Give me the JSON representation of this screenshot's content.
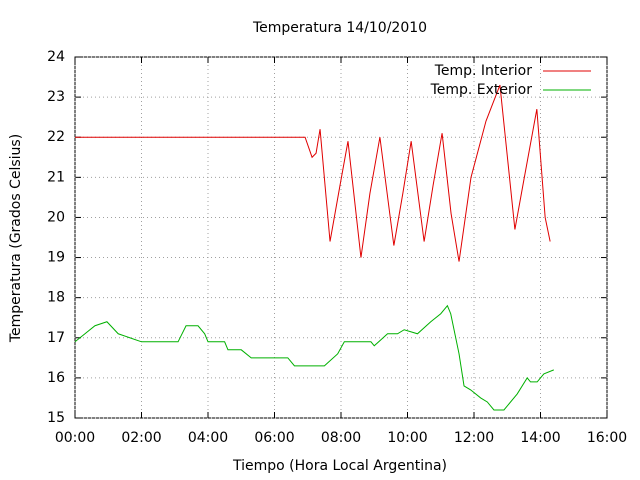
{
  "chart_data": {
    "type": "line",
    "title": "Temperatura 14/10/2010",
    "x_label": "Tiempo (Hora Local Argentina)",
    "y_label": "Temperatura (Grados Celsius)",
    "xlim": [
      0,
      16
    ],
    "ylim": [
      15,
      24
    ],
    "xticks": [
      {
        "value": 0,
        "label": "00:00"
      },
      {
        "value": 2,
        "label": "02:00"
      },
      {
        "value": 4,
        "label": "04:00"
      },
      {
        "value": 6,
        "label": "06:00"
      },
      {
        "value": 8,
        "label": "08:00"
      },
      {
        "value": 10,
        "label": "10:00"
      },
      {
        "value": 12,
        "label": "12:00"
      },
      {
        "value": 14,
        "label": "14:00"
      },
      {
        "value": 16,
        "label": "16:00"
      }
    ],
    "yticks": [
      15,
      16,
      17,
      18,
      19,
      20,
      21,
      22,
      23,
      24
    ],
    "grid": true,
    "legend": "top-right",
    "series": [
      {
        "name": "Temp. Interior",
        "color": "#e00000",
        "x": [
          0,
          6.92,
          7.13,
          7.25,
          7.37,
          7.67,
          7.97,
          8.21,
          8.6,
          8.87,
          9.17,
          9.59,
          9.86,
          10.11,
          10.5,
          10.77,
          11.04,
          11.31,
          11.55,
          11.91,
          12.36,
          12.78,
          13.23,
          13.47,
          13.89,
          14.14,
          14.29
        ],
        "values": [
          22,
          22,
          21.5,
          21.6,
          22.2,
          19.4,
          20.8,
          21.9,
          19.0,
          20.6,
          22.0,
          19.3,
          20.6,
          21.9,
          19.4,
          20.8,
          22.1,
          20.1,
          18.9,
          21.0,
          22.4,
          23.3,
          19.7,
          20.8,
          22.7,
          20.0,
          19.4
        ]
      },
      {
        "name": "Temp. Exterior",
        "color": "#00b000",
        "x": [
          0,
          0.3,
          0.6,
          0.96,
          1.3,
          2.0,
          3.1,
          3.34,
          3.7,
          3.9,
          4.0,
          4.5,
          4.6,
          5.0,
          5.3,
          6.4,
          6.6,
          7.5,
          7.9,
          8.1,
          8.9,
          9.0,
          9.4,
          9.7,
          9.9,
          10.3,
          10.7,
          11.0,
          11.2,
          11.3,
          11.55,
          11.7,
          11.9,
          12.2,
          12.4,
          12.6,
          12.9,
          13.3,
          13.6,
          13.7,
          13.9,
          14.1,
          14.4
        ],
        "values": [
          16.9,
          17.1,
          17.3,
          17.4,
          17.1,
          16.9,
          16.9,
          17.3,
          17.3,
          17.1,
          16.9,
          16.9,
          16.7,
          16.7,
          16.5,
          16.5,
          16.3,
          16.3,
          16.6,
          16.9,
          16.9,
          16.8,
          17.1,
          17.1,
          17.2,
          17.1,
          17.4,
          17.6,
          17.8,
          17.6,
          16.6,
          15.8,
          15.7,
          15.5,
          15.4,
          15.2,
          15.2,
          15.6,
          16.0,
          15.9,
          15.9,
          16.1,
          16.2
        ]
      }
    ]
  }
}
